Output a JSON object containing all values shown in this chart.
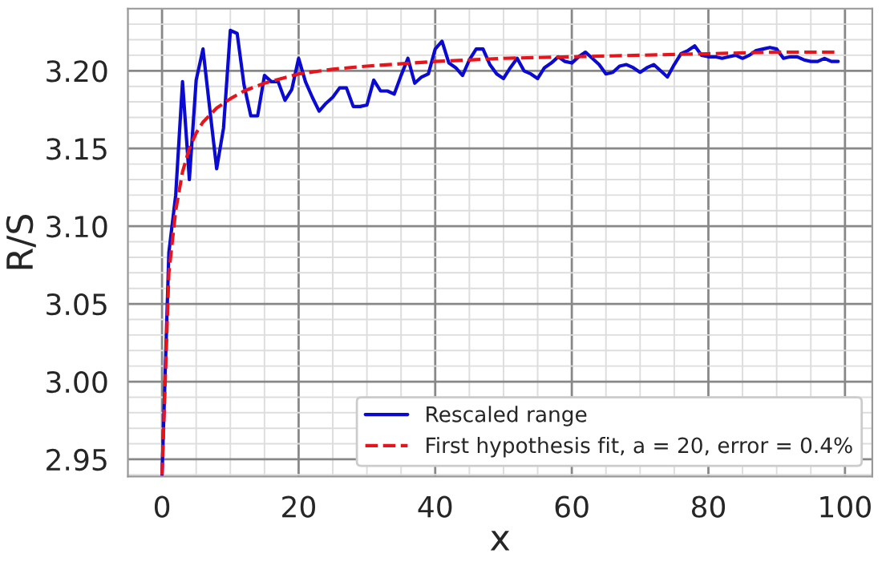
{
  "chart_data": {
    "type": "line",
    "xlabel": "x",
    "ylabel": "R/S",
    "xlim": [
      -5,
      104
    ],
    "xticks": [
      0,
      20,
      40,
      60,
      80,
      100
    ],
    "ylim": [
      2.939,
      3.24
    ],
    "yticks": [
      {
        "value": 2.95,
        "label": "2.95"
      },
      {
        "value": 3.0,
        "label": "3.00"
      },
      {
        "value": 3.05,
        "label": "3.05"
      },
      {
        "value": 3.1,
        "label": "3.10"
      },
      {
        "value": 3.15,
        "label": "3.15"
      },
      {
        "value": 3.2,
        "label": "3.20"
      }
    ],
    "grid": true,
    "legend": "bottom right",
    "series": [
      {
        "name": "Rescaled range",
        "color": "#0a0ad2",
        "line_style": "solid",
        "x": [
          0,
          1,
          2,
          3,
          4,
          5,
          6,
          7,
          8,
          9,
          10,
          11,
          12,
          13,
          14,
          15,
          16,
          17,
          18,
          19,
          20,
          21,
          22,
          23,
          24,
          25,
          26,
          27,
          28,
          29,
          30,
          31,
          32,
          33,
          34,
          35,
          36,
          37,
          38,
          39,
          40,
          41,
          42,
          43,
          44,
          45,
          46,
          47,
          48,
          49,
          50,
          51,
          52,
          53,
          54,
          55,
          56,
          57,
          58,
          59,
          60,
          61,
          62,
          63,
          64,
          65,
          66,
          67,
          68,
          69,
          70,
          71,
          72,
          73,
          74,
          75,
          76,
          77,
          78,
          79,
          80,
          81,
          82,
          83,
          84,
          85,
          86,
          87,
          88,
          89,
          90,
          91,
          92,
          93,
          94,
          95,
          96,
          97,
          98,
          99
        ],
        "values": [
          2.94,
          3.083,
          3.12,
          3.193,
          3.13,
          3.194,
          3.214,
          3.175,
          3.137,
          3.163,
          3.226,
          3.224,
          3.191,
          3.171,
          3.171,
          3.197,
          3.193,
          3.193,
          3.181,
          3.188,
          3.208,
          3.193,
          3.183,
          3.174,
          3.179,
          3.183,
          3.189,
          3.189,
          3.177,
          3.177,
          3.178,
          3.194,
          3.187,
          3.187,
          3.185,
          3.197,
          3.208,
          3.192,
          3.196,
          3.198,
          3.214,
          3.219,
          3.205,
          3.202,
          3.197,
          3.207,
          3.214,
          3.214,
          3.204,
          3.198,
          3.195,
          3.202,
          3.208,
          3.2,
          3.198,
          3.195,
          3.202,
          3.205,
          3.209,
          3.206,
          3.205,
          3.209,
          3.212,
          3.208,
          3.204,
          3.198,
          3.199,
          3.203,
          3.204,
          3.202,
          3.199,
          3.202,
          3.204,
          3.2,
          3.196,
          3.204,
          3.211,
          3.213,
          3.216,
          3.21,
          3.209,
          3.209,
          3.208,
          3.209,
          3.21,
          3.208,
          3.21,
          3.213,
          3.214,
          3.215,
          3.214,
          3.208,
          3.209,
          3.209,
          3.207,
          3.206,
          3.206,
          3.208,
          3.206,
          3.206
        ]
      },
      {
        "name": "First hypothesis fit, a = 20, error = 0.4%",
        "color": "#e8141c",
        "line_style": "dashed",
        "x": [
          0,
          1,
          2,
          3,
          4,
          5,
          6,
          8,
          10,
          12,
          15,
          20,
          25,
          30,
          40,
          50,
          60,
          70,
          80,
          90,
          99
        ],
        "values": [
          2.94,
          3.07,
          3.11,
          3.135,
          3.15,
          3.16,
          3.167,
          3.176,
          3.182,
          3.187,
          3.192,
          3.198,
          3.201,
          3.203,
          3.206,
          3.208,
          3.209,
          3.21,
          3.211,
          3.212,
          3.212
        ]
      }
    ]
  }
}
